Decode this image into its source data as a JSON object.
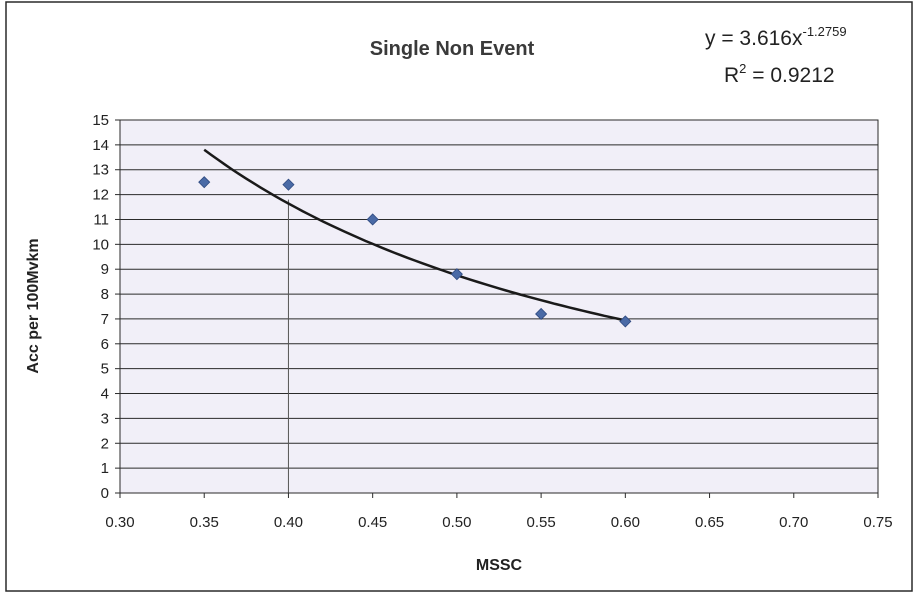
{
  "chart_data": {
    "type": "scatter",
    "title": "Single Non Event",
    "xlabel": "MSSC",
    "ylabel": "Acc per 100Mvkm",
    "xlim": [
      0.3,
      0.75
    ],
    "ylim": [
      0,
      15
    ],
    "x_ticks": [
      "0.30",
      "0.35",
      "0.40",
      "0.45",
      "0.50",
      "0.55",
      "0.60",
      "0.65",
      "0.70",
      "0.75"
    ],
    "y_ticks": [
      "0",
      "1",
      "2",
      "3",
      "4",
      "5",
      "6",
      "7",
      "8",
      "9",
      "10",
      "11",
      "12",
      "13",
      "14",
      "15"
    ],
    "grid": "horizontal",
    "legend": "none",
    "series": [
      {
        "x": [
          0.35,
          0.4,
          0.45,
          0.5,
          0.55,
          0.6
        ],
        "y": [
          12.5,
          12.4,
          11.0,
          8.8,
          7.2,
          6.9
        ]
      }
    ],
    "trendline": {
      "type": "power",
      "coefficient": 3.616,
      "exponent": -1.2759,
      "x_range": [
        0.35,
        0.6
      ],
      "equation_base": "y = 3.616x",
      "equation_exponent": "-1.2759",
      "r2_base": "R",
      "r2_exponent": "2",
      "r2_value": " = 0.9212"
    },
    "reference_line_x": 0.4,
    "colors": {
      "plot_background": "#f1eff8",
      "marker": "#4a6aa6",
      "trendline": "#1a1a1a",
      "gridline": "#2a2a2a",
      "border": "#2a2a2a"
    }
  }
}
